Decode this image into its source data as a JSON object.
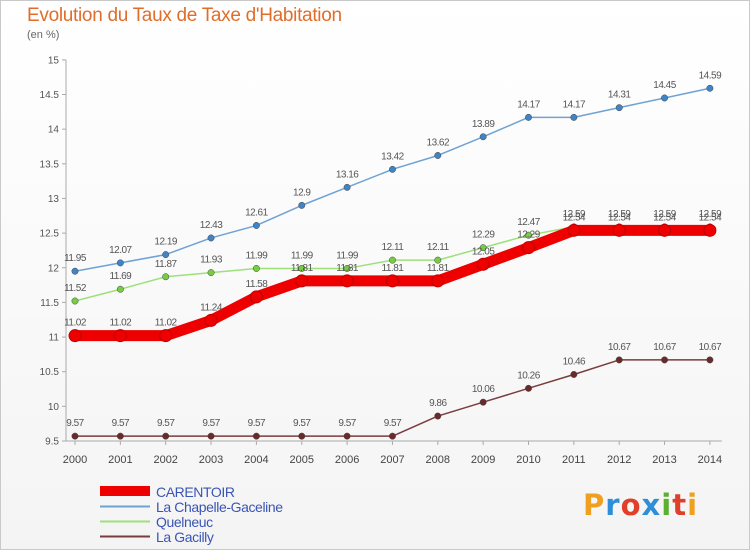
{
  "header": {
    "title": "Evolution du Taux de Taxe d'Habitation",
    "subtitle": "(en %)"
  },
  "logo": {
    "letters": [
      "P",
      "r",
      "o",
      "x",
      "i",
      "t",
      "i"
    ],
    "colors": [
      "#f0a020",
      "#2e8fd8",
      "#e0402a",
      "#2e8fd8",
      "#5cb030",
      "#e0402a",
      "#f0a020"
    ]
  },
  "chart_data": {
    "type": "line",
    "title": "Evolution du Taux de Taxe d'Habitation",
    "ylabel": "(en %)",
    "xlabel": "",
    "x": [
      "2000",
      "2001",
      "2002",
      "2003",
      "2004",
      "2005",
      "2006",
      "2007",
      "2008",
      "2009",
      "2010",
      "2011",
      "2012",
      "2013",
      "2014"
    ],
    "ylim": [
      9.5,
      15
    ],
    "yticks": [
      9.5,
      10,
      10.5,
      11,
      11.5,
      12,
      12.5,
      13,
      13.5,
      14,
      14.5,
      15
    ],
    "grid": false,
    "legend_position": "bottom-left",
    "series": [
      {
        "name": "CARENTOIR",
        "color": "#ee0000",
        "marker_color": "#ee0000",
        "values": [
          11.02,
          11.02,
          11.02,
          11.24,
          11.58,
          11.81,
          11.81,
          11.81,
          11.81,
          12.05,
          12.29,
          12.54,
          12.54,
          12.54,
          12.54
        ]
      },
      {
        "name": "La Chapelle-Gaceline",
        "color": "#6fa2d4",
        "marker_color": "#3f84c8",
        "values": [
          11.95,
          12.07,
          12.19,
          12.43,
          12.61,
          12.9,
          13.16,
          13.42,
          13.62,
          13.89,
          14.17,
          14.17,
          14.31,
          14.45,
          14.59
        ]
      },
      {
        "name": "Quelneuc",
        "color": "#9ee07a",
        "marker_color": "#78cc44",
        "values": [
          11.52,
          11.69,
          11.87,
          11.93,
          11.99,
          11.99,
          11.99,
          12.11,
          12.11,
          12.29,
          12.47,
          12.59,
          12.59,
          12.59,
          12.59
        ]
      },
      {
        "name": "La Gacilly",
        "color": "#7a3c3c",
        "marker_color": "#6a2a2a",
        "values": [
          9.57,
          9.57,
          9.57,
          9.57,
          9.57,
          9.57,
          9.57,
          9.57,
          9.86,
          10.06,
          10.26,
          10.46,
          10.67,
          10.67,
          10.67
        ]
      }
    ]
  }
}
